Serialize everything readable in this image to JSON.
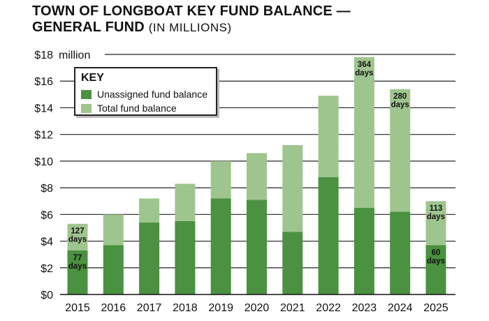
{
  "title": {
    "line1": "TOWN OF LONGBOAT KEY FUND BALANCE —",
    "line2": "GENERAL FUND",
    "line2_suffix": "(IN MILLIONS)"
  },
  "legend": {
    "title": "KEY",
    "items": [
      {
        "label": "Unassigned fund balance",
        "color": "#4a9140"
      },
      {
        "label": "Total fund balance",
        "color": "#9fc58f"
      }
    ]
  },
  "chart_data": {
    "type": "bar",
    "categories": [
      "2015",
      "2016",
      "2017",
      "2018",
      "2019",
      "2020",
      "2021",
      "2022",
      "2023",
      "2024",
      "2025"
    ],
    "series": [
      {
        "name": "Unassigned fund balance",
        "values": [
          3.3,
          3.7,
          5.4,
          5.5,
          7.2,
          7.1,
          4.7,
          8.8,
          6.5,
          6.2,
          3.7
        ]
      },
      {
        "name": "Total fund balance",
        "values": [
          5.3,
          6.0,
          7.2,
          8.3,
          10.0,
          10.6,
          11.2,
          14.9,
          17.8,
          15.4,
          7.0
        ]
      }
    ],
    "ylim": [
      0,
      18
    ],
    "yticks": [
      {
        "value": 0,
        "label": "$0"
      },
      {
        "value": 2,
        "label": "$2"
      },
      {
        "value": 4,
        "label": "$4"
      },
      {
        "value": 6,
        "label": "$6"
      },
      {
        "value": 8,
        "label": "$8"
      },
      {
        "value": 10,
        "label": "$10"
      },
      {
        "value": 12,
        "label": "$12"
      },
      {
        "value": 14,
        "label": "$14"
      },
      {
        "value": 16,
        "label": "$16"
      },
      {
        "value": 18,
        "label": "$18"
      }
    ],
    "ytop_unit": "million",
    "grid": true,
    "legend_position": "top-left",
    "annotations": [
      {
        "category": "2015",
        "series": "Total fund balance",
        "number": "127",
        "unit": "days"
      },
      {
        "category": "2015",
        "series": "Unassigned fund balance",
        "number": "77",
        "unit": "days"
      },
      {
        "category": "2023",
        "series": "Total fund balance",
        "number": "364",
        "unit": "days"
      },
      {
        "category": "2024",
        "series": "Total fund balance",
        "number": "280",
        "unit": "days"
      },
      {
        "category": "2025",
        "series": "Total fund balance",
        "number": "113",
        "unit": "days"
      },
      {
        "category": "2025",
        "series": "Unassigned fund balance",
        "number": "60",
        "unit": "days"
      }
    ],
    "colors": {
      "unassigned": "#4a9140",
      "total": "#9fc58f",
      "grid": "#222222"
    }
  }
}
